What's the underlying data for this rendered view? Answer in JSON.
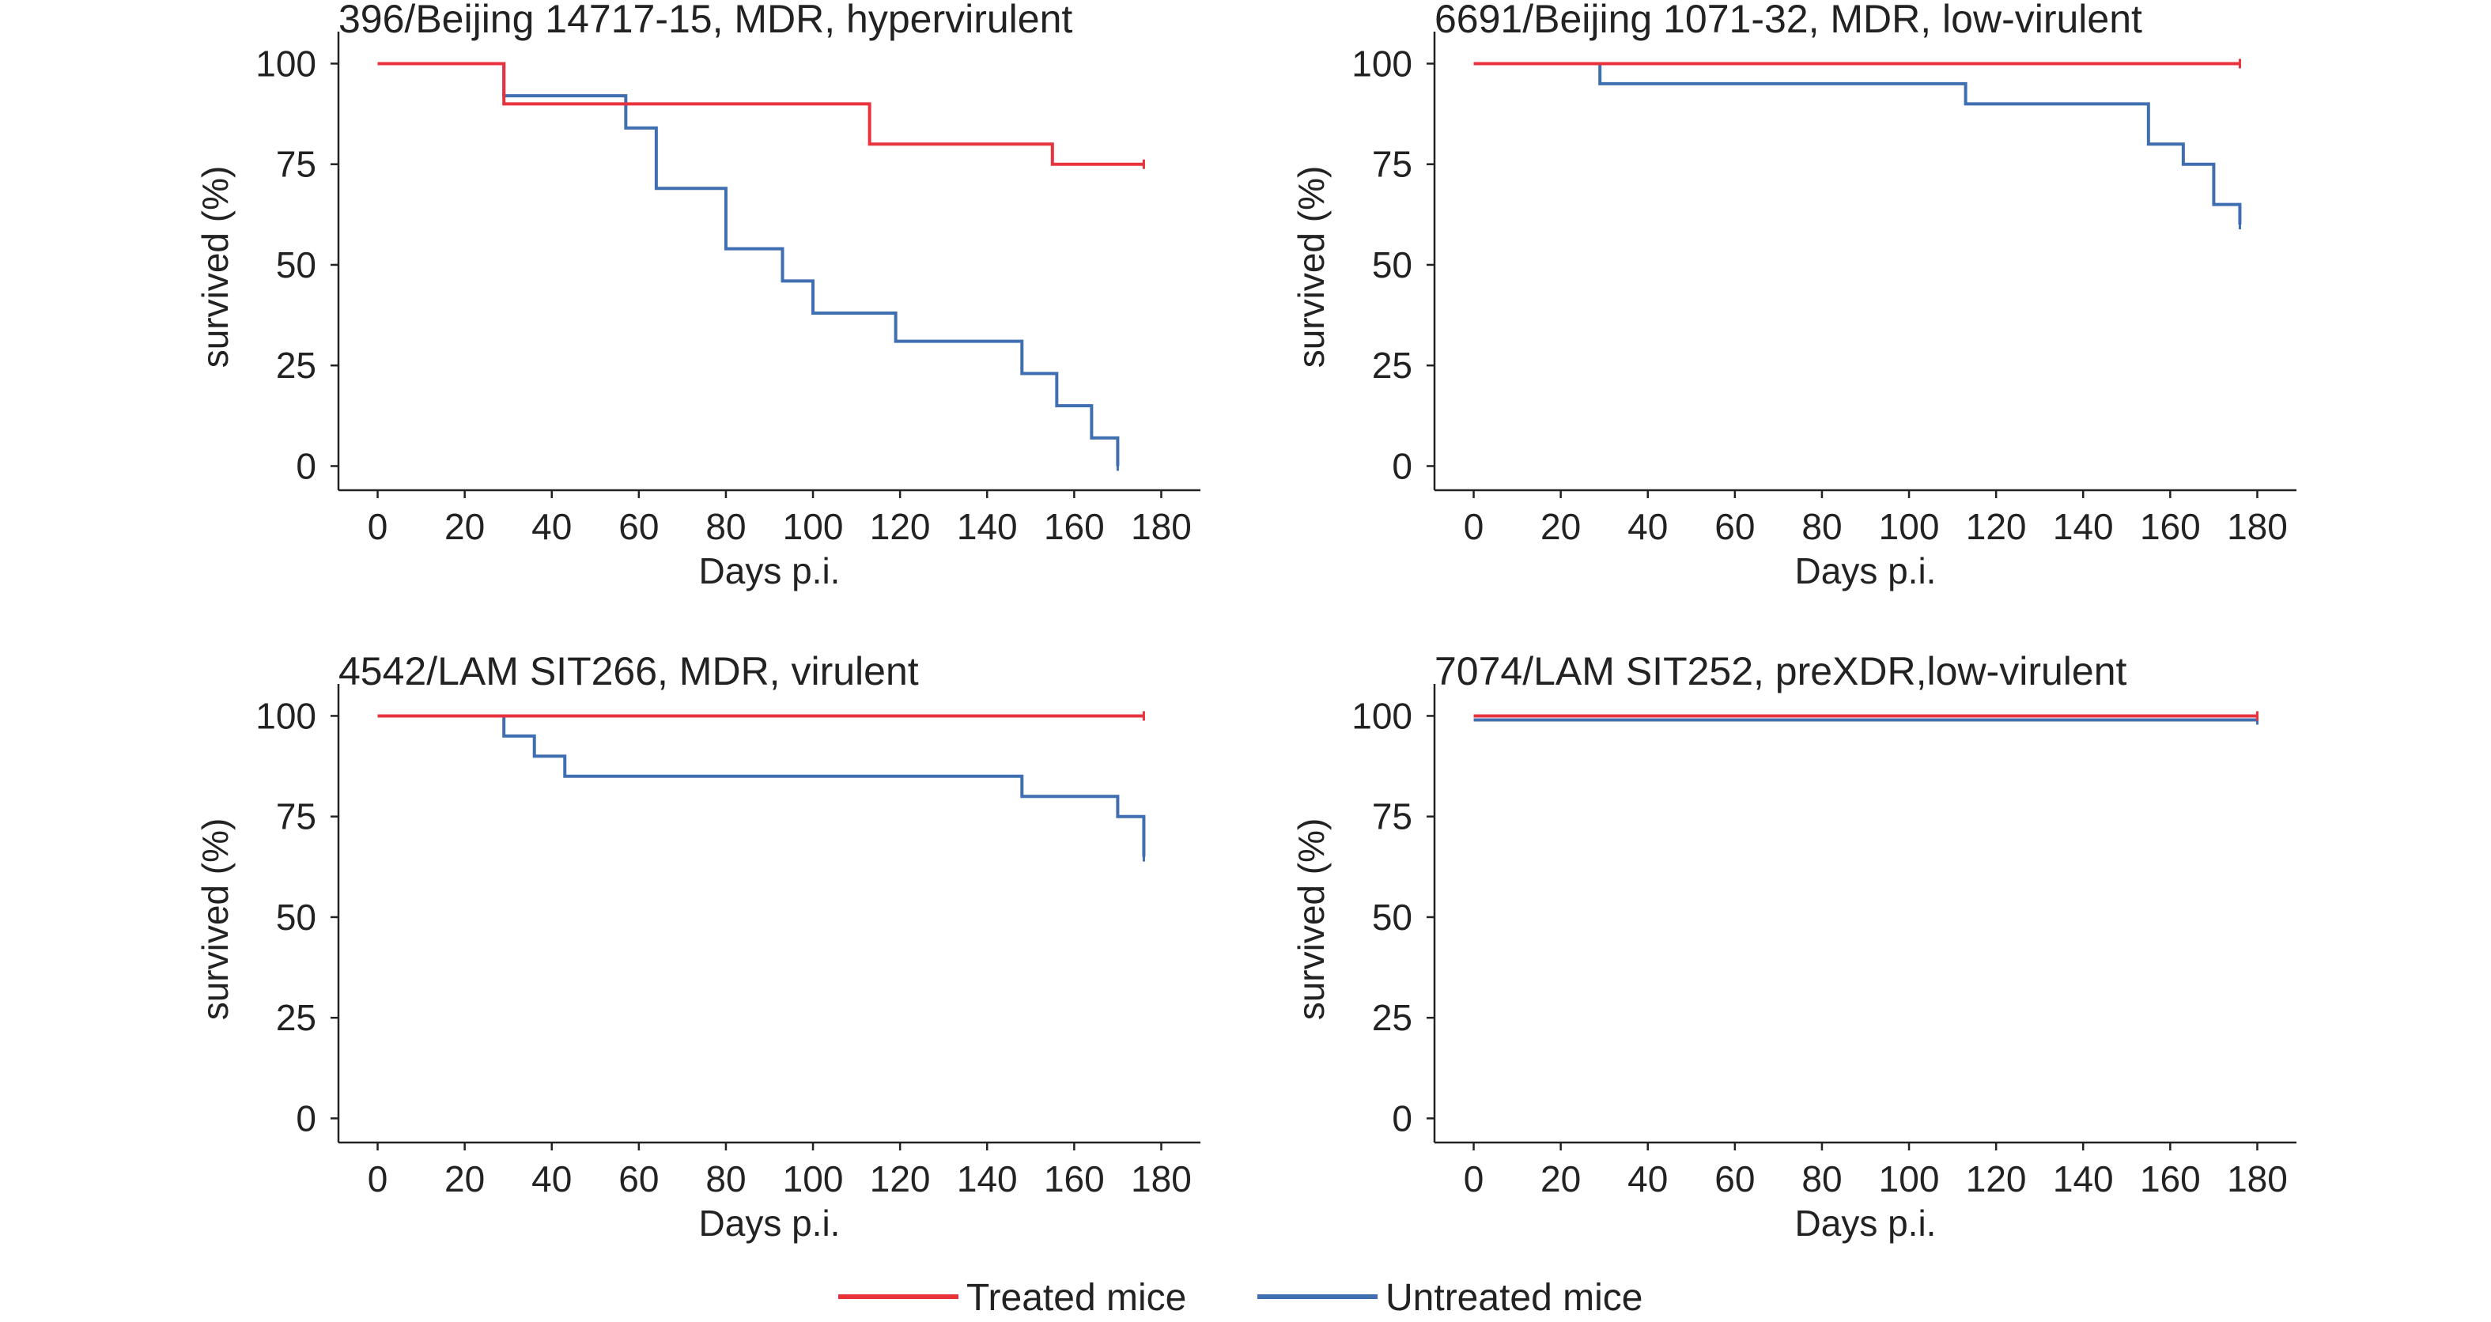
{
  "colors": {
    "treated": "#e8333d",
    "untreated": "#3f6eb1",
    "axis": "#222222"
  },
  "legend": [
    {
      "key": "treated",
      "label": "Treated mice",
      "color": "#e8333d"
    },
    {
      "key": "untreated",
      "label": "Untreated mice",
      "color": "#3f6eb1"
    }
  ],
  "chart_data": [
    {
      "type": "line",
      "subtype": "kaplan-meier step",
      "title": "396/Beijing 14717-15, MDR, hypervirulent",
      "xlabel": "Days p.i.",
      "ylabel": "survived (%)",
      "xlim": [
        -9,
        189
      ],
      "ylim": [
        -6,
        105
      ],
      "xticks": [
        0,
        20,
        40,
        60,
        80,
        100,
        120,
        140,
        160,
        180
      ],
      "yticks": [
        0,
        25,
        50,
        75,
        100
      ],
      "grid": false,
      "series": [
        {
          "name": "Treated mice",
          "key": "treated",
          "steps": [
            [
              0,
              100
            ],
            [
              29,
              90
            ],
            [
              113,
              80
            ],
            [
              155,
              75
            ],
            [
              176,
              75
            ]
          ]
        },
        {
          "name": "Untreated mice",
          "key": "untreated",
          "steps": [
            [
              0,
              100
            ],
            [
              29,
              92
            ],
            [
              57,
              84
            ],
            [
              64,
              69
            ],
            [
              80,
              54
            ],
            [
              93,
              46
            ],
            [
              100,
              38
            ],
            [
              119,
              31
            ],
            [
              148,
              23
            ],
            [
              156,
              15
            ],
            [
              164,
              7
            ],
            [
              170,
              0
            ]
          ]
        }
      ]
    },
    {
      "type": "line",
      "subtype": "kaplan-meier step",
      "title": "6691/Beijing 1071-32, MDR, low-virulent",
      "xlabel": "Days p.i.",
      "ylabel": "survived (%)",
      "xlim": [
        -9,
        189
      ],
      "ylim": [
        -6,
        105
      ],
      "xticks": [
        0,
        20,
        40,
        60,
        80,
        100,
        120,
        140,
        160,
        180
      ],
      "yticks": [
        0,
        25,
        50,
        75,
        100
      ],
      "grid": false,
      "series": [
        {
          "name": "Treated mice",
          "key": "treated",
          "steps": [
            [
              0,
              100
            ],
            [
              176,
              100
            ]
          ]
        },
        {
          "name": "Untreated mice",
          "key": "untreated",
          "steps": [
            [
              0,
              100
            ],
            [
              29,
              95
            ],
            [
              113,
              90
            ],
            [
              155,
              80
            ],
            [
              163,
              75
            ],
            [
              170,
              65
            ],
            [
              176,
              60
            ]
          ]
        }
      ]
    },
    {
      "type": "line",
      "subtype": "kaplan-meier step",
      "title": "4542/LAM SIT266, MDR, virulent",
      "xlabel": "Days p.i.",
      "ylabel": "survived (%)",
      "xlim": [
        -9,
        189
      ],
      "ylim": [
        -6,
        105
      ],
      "xticks": [
        0,
        20,
        40,
        60,
        80,
        100,
        120,
        140,
        160,
        180
      ],
      "yticks": [
        0,
        25,
        50,
        75,
        100
      ],
      "grid": false,
      "series": [
        {
          "name": "Treated mice",
          "key": "treated",
          "steps": [
            [
              0,
              100
            ],
            [
              176,
              100
            ]
          ]
        },
        {
          "name": "Untreated mice",
          "key": "untreated",
          "steps": [
            [
              0,
              100
            ],
            [
              29,
              95
            ],
            [
              36,
              90
            ],
            [
              43,
              85
            ],
            [
              148,
              80
            ],
            [
              170,
              75
            ],
            [
              176,
              65
            ]
          ]
        }
      ]
    },
    {
      "type": "line",
      "subtype": "kaplan-meier step",
      "title": "7074/LAM SIT252, preXDR,low-virulent",
      "xlabel": "Days p.i.",
      "ylabel": "survived (%)",
      "xlim": [
        -9,
        189
      ],
      "ylim": [
        -6,
        105
      ],
      "xticks": [
        0,
        20,
        40,
        60,
        80,
        100,
        120,
        140,
        160,
        180
      ],
      "yticks": [
        0,
        25,
        50,
        75,
        100
      ],
      "grid": false,
      "series": [
        {
          "name": "Treated mice",
          "key": "treated",
          "steps": [
            [
              0,
              100
            ],
            [
              180,
              100
            ]
          ]
        },
        {
          "name": "Untreated mice",
          "key": "untreated",
          "steps": [
            [
              0,
              99
            ],
            [
              180,
              99
            ]
          ]
        }
      ]
    }
  ]
}
